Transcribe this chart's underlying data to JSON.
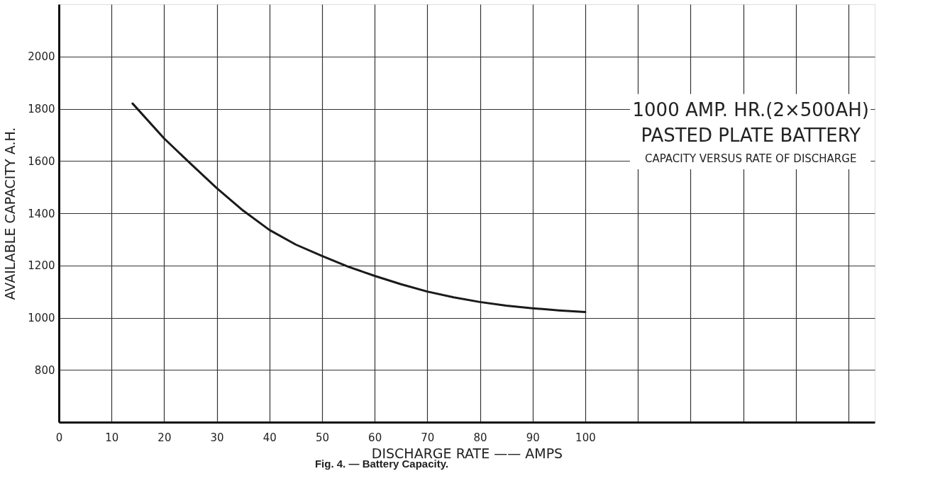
{
  "chart_data": {
    "type": "line",
    "xlabel": "DISCHARGE  RATE —— AMPS",
    "ylabel": "AVAILABLE  CAPACITY  A.H.",
    "annotations": [
      "1000 AMP. HR.(2×500AH)",
      "PASTED PLATE BATTERY",
      "CAPACITY  VERSUS RATE OF DISCHARGE",
      "Fig. 4. — Battery Capacity."
    ],
    "series": [
      {
        "color": "#1a1a1a",
        "x": [
          14,
          20,
          25,
          30,
          35,
          40,
          45,
          50,
          55,
          60,
          65,
          70,
          75,
          80,
          85,
          90,
          95,
          100
        ],
        "values": [
          1820,
          1686,
          1590,
          1496,
          1410,
          1336,
          1280,
          1236,
          1195,
          1160,
          1128,
          1100,
          1078,
          1060,
          1046,
          1036,
          1028,
          1022
        ]
      }
    ],
    "xlim": [
      0,
      155
    ],
    "xticks": [
      0,
      10,
      20,
      30,
      40,
      50,
      60,
      70,
      80,
      90,
      100,
      {
        "value": 110,
        "label": null
      },
      {
        "value": 120,
        "label": null
      },
      {
        "value": 130,
        "label": null
      },
      {
        "value": 140,
        "label": null
      },
      {
        "value": 150,
        "label": null
      }
    ],
    "ylim": [
      600,
      2200
    ],
    "yticks": [
      800,
      1000,
      1200,
      1400,
      1600,
      1800,
      2000
    ],
    "grid": true,
    "marker": "none",
    "line_style": "solid"
  }
}
